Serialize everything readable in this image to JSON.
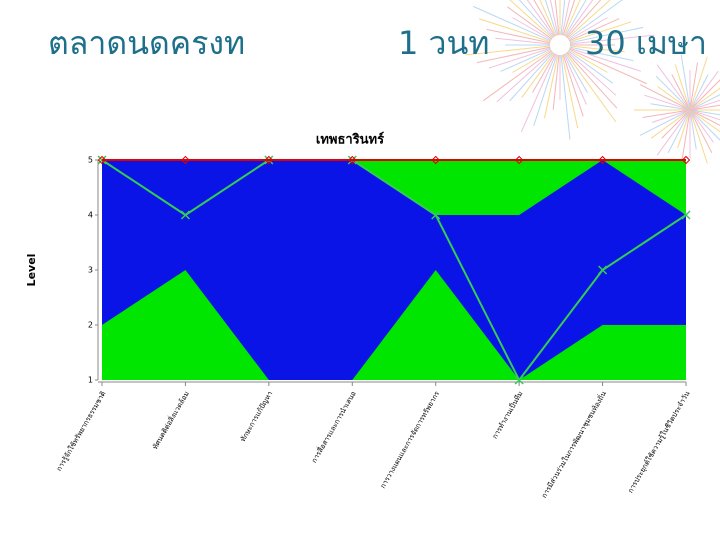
{
  "slide": {
    "header": [
      "ตลาดนดครงท",
      "1 วนท",
      "30 เมษา"
    ]
  },
  "chart_data": {
    "type": "area",
    "title": "เทพธารินทร์",
    "y_label": "Level",
    "categories": [
      "การรู้จักใช้ทรัพยากรธรรมชาติ",
      "ทัศนคติต่อสิ่งแวดล้อม",
      "ทักษะการแก้ปัญหา",
      "การสื่อสารและการนำเสนอ",
      "การวางแผนและการจัดการทรัพยากร",
      "การทำงานเป็นทีม",
      "การมีส่วนร่วมในการพัฒนาชุมชนท้องถิ่น",
      "การประยุกต์ใช้ความรู้ในชีวิตประจำวัน"
    ],
    "series": [
      {
        "type": "area",
        "color": "#00e600",
        "values": [
          5,
          5,
          5,
          5,
          5,
          5,
          5,
          5
        ]
      },
      {
        "type": "area",
        "color": "#0a14e6",
        "values": [
          5,
          5,
          5,
          5,
          4,
          4,
          5,
          4
        ]
      },
      {
        "type": "area",
        "color": "#00e600",
        "values": [
          2,
          3,
          1,
          1,
          3,
          1,
          2,
          2
        ]
      },
      {
        "type": "line",
        "color": "#33cc55",
        "marker": "x",
        "values": [
          5,
          4,
          5,
          5,
          4,
          1,
          3,
          4
        ]
      },
      {
        "type": "line",
        "color": "#e00000",
        "marker": "diamond",
        "values": [
          5,
          5,
          5,
          5,
          5,
          5,
          5,
          5
        ]
      }
    ],
    "ylim": [
      1,
      5
    ],
    "yticks": [
      1,
      2,
      3,
      4,
      5
    ]
  }
}
